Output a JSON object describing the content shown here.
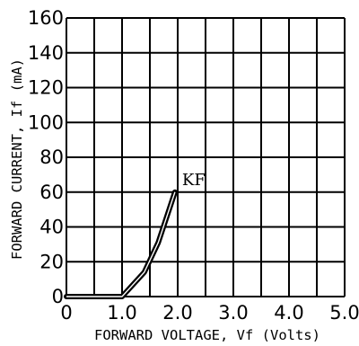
{
  "chart_data": {
    "type": "line",
    "xlabel": "FORWARD VOLTAGE, Vf (Volts)",
    "ylabel": "FORWARD CURRENT, If (mA)",
    "xlim": [
      0,
      5
    ],
    "ylim": [
      0,
      160
    ],
    "x_ticks": [
      "0",
      "1.0",
      "2.0",
      "3.0",
      "4.0",
      "5.0"
    ],
    "y_ticks": [
      "0",
      "20",
      "40",
      "60",
      "80",
      "100",
      "120",
      "140",
      "160"
    ],
    "x_grid_step": 0.5,
    "y_grid_step": 20,
    "grid": true,
    "series": [
      {
        "name": "KF",
        "x": [
          0,
          1.0,
          1.4,
          1.65,
          1.95
        ],
        "y": [
          0,
          0,
          14,
          31,
          60
        ]
      }
    ]
  }
}
